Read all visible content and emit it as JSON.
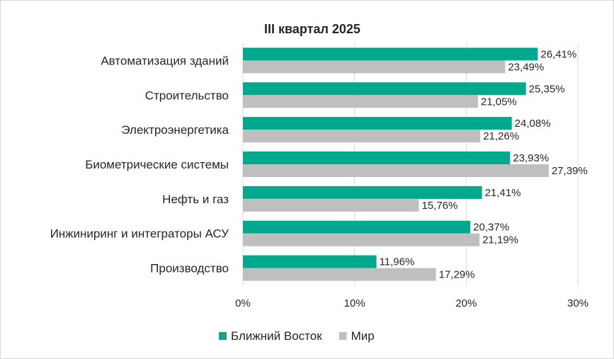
{
  "chart_data": {
    "type": "bar",
    "orientation": "horizontal",
    "title": "III квартал 2025",
    "categories": [
      "Автоматизация зданий",
      "Строительство",
      "Электроэнергетика",
      "Биометрические системы",
      "Нефть и газ",
      "Инжиниринг и интеграторы АСУ",
      "Производство"
    ],
    "series": [
      {
        "name": "Ближний Восток",
        "color": "#00a88e",
        "values": [
          26.41,
          25.35,
          24.08,
          23.93,
          21.41,
          20.37,
          11.96
        ],
        "labels": [
          "26,41%",
          "25,35%",
          "24,08%",
          "23,93%",
          "21,41%",
          "20,37%",
          "11,96%"
        ]
      },
      {
        "name": "Мир",
        "color": "#bfbfbf",
        "values": [
          23.49,
          21.05,
          21.26,
          27.39,
          15.76,
          21.19,
          17.29
        ],
        "labels": [
          "23,49%",
          "21,05%",
          "21,26%",
          "27,39%",
          "15,76%",
          "21,19%",
          "17,29%"
        ]
      }
    ],
    "xlim": [
      0,
      30
    ],
    "xticks": [
      0,
      10,
      20,
      30
    ],
    "xtick_labels": [
      "0%",
      "10%",
      "20%",
      "30%"
    ],
    "grid": "vertical",
    "legend_position": "bottom-center"
  }
}
